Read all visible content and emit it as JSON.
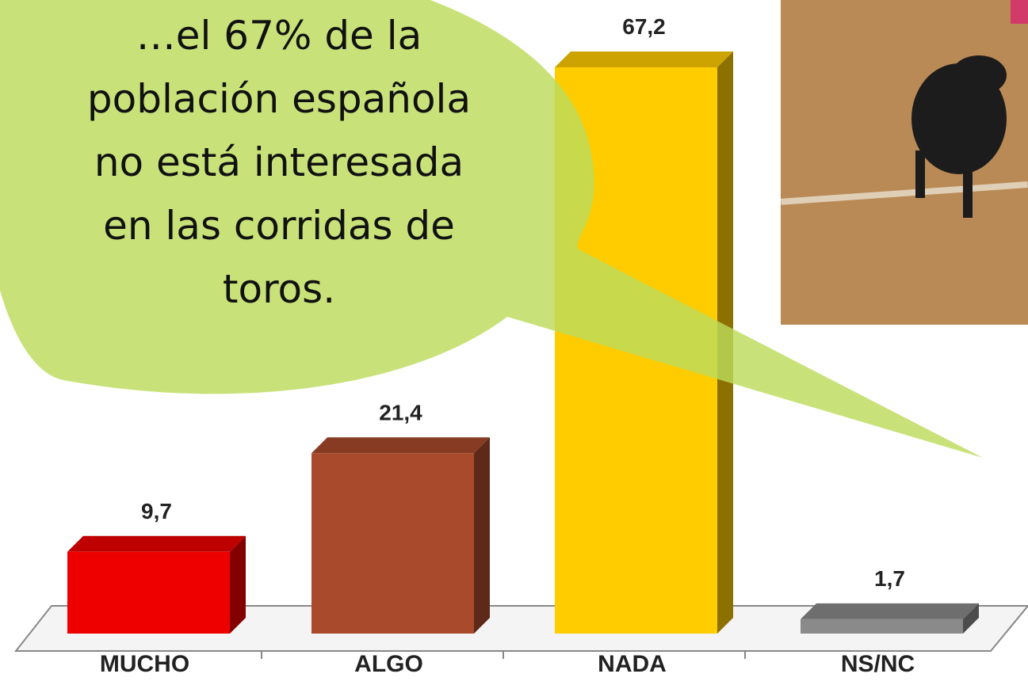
{
  "chart_data": {
    "type": "bar3d",
    "categories": [
      "MUCHO",
      "ALGO",
      "NADA",
      "NS/NC"
    ],
    "values": [
      9.7,
      21.4,
      67.2,
      1.7
    ],
    "value_labels": [
      "9,7",
      "21,4",
      "67,2",
      "1,7"
    ],
    "colors": [
      "#ee0000",
      "#a94a2c",
      "#ffcc00",
      "#8a8a8a"
    ],
    "annotation": [
      "…el 67% de la",
      "población española",
      "no está interesada",
      "en las corridas de",
      "toros."
    ]
  }
}
